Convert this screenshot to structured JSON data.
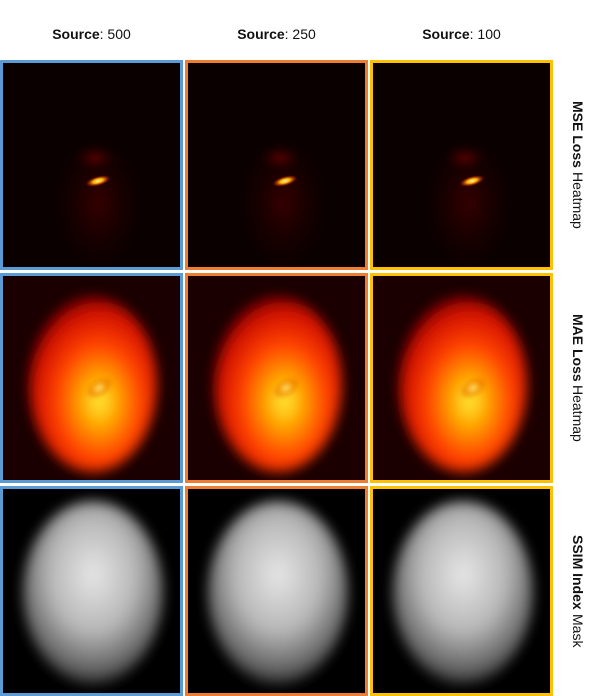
{
  "columns": [
    {
      "bold": "Source",
      "text": ": 500",
      "color": "#5b9bd5"
    },
    {
      "bold": "Source",
      "text": ": 250",
      "color": "#ed7d31"
    },
    {
      "bold": "Source",
      "text": ": 100",
      "color": "#ffc000"
    }
  ],
  "rows": [
    {
      "bold": "MSE Loss",
      "text": "Heatmap"
    },
    {
      "bold": "MAE Loss",
      "text": "Heatmap"
    },
    {
      "bold": "SSIM Index",
      "text": "Mask"
    }
  ]
}
